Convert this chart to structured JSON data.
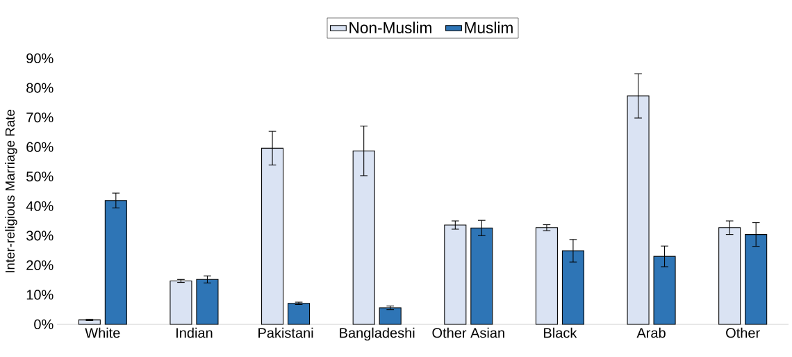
{
  "chart_data": {
    "type": "bar",
    "ylabel": "Inter-religious Marriage Rate",
    "categories": [
      "White",
      "Indian",
      "Pakistani",
      "Bangladeshi",
      "Other Asian",
      "Black",
      "Arab",
      "Other"
    ],
    "series": [
      {
        "name": "Non-Muslim",
        "color": "#dae3f3",
        "values": [
          1.5,
          14.7,
          59.6,
          58.7,
          33.6,
          32.7,
          77.3,
          32.7
        ],
        "errors": [
          0.2,
          0.5,
          5.7,
          8.4,
          1.4,
          1.0,
          7.5,
          2.3
        ]
      },
      {
        "name": "Muslim",
        "color": "#2e75b6",
        "values": [
          41.9,
          15.2,
          7.1,
          5.6,
          32.6,
          24.9,
          23.0,
          30.4
        ],
        "errors": [
          2.5,
          1.2,
          0.4,
          0.6,
          2.6,
          3.8,
          3.5,
          4.0
        ]
      }
    ],
    "ylim": [
      0,
      90
    ],
    "yticks": [
      {
        "value": 0,
        "label": "0%"
      },
      {
        "value": 10,
        "label": "10%"
      },
      {
        "value": 20,
        "label": "20%"
      },
      {
        "value": 30,
        "label": "30%"
      },
      {
        "value": 40,
        "label": "40%"
      },
      {
        "value": 50,
        "label": "50%"
      },
      {
        "value": 60,
        "label": "60%"
      },
      {
        "value": 70,
        "label": "70%"
      },
      {
        "value": 80,
        "label": "80%"
      },
      {
        "value": 90,
        "label": "90%"
      }
    ],
    "grid": false,
    "legend": "top"
  }
}
